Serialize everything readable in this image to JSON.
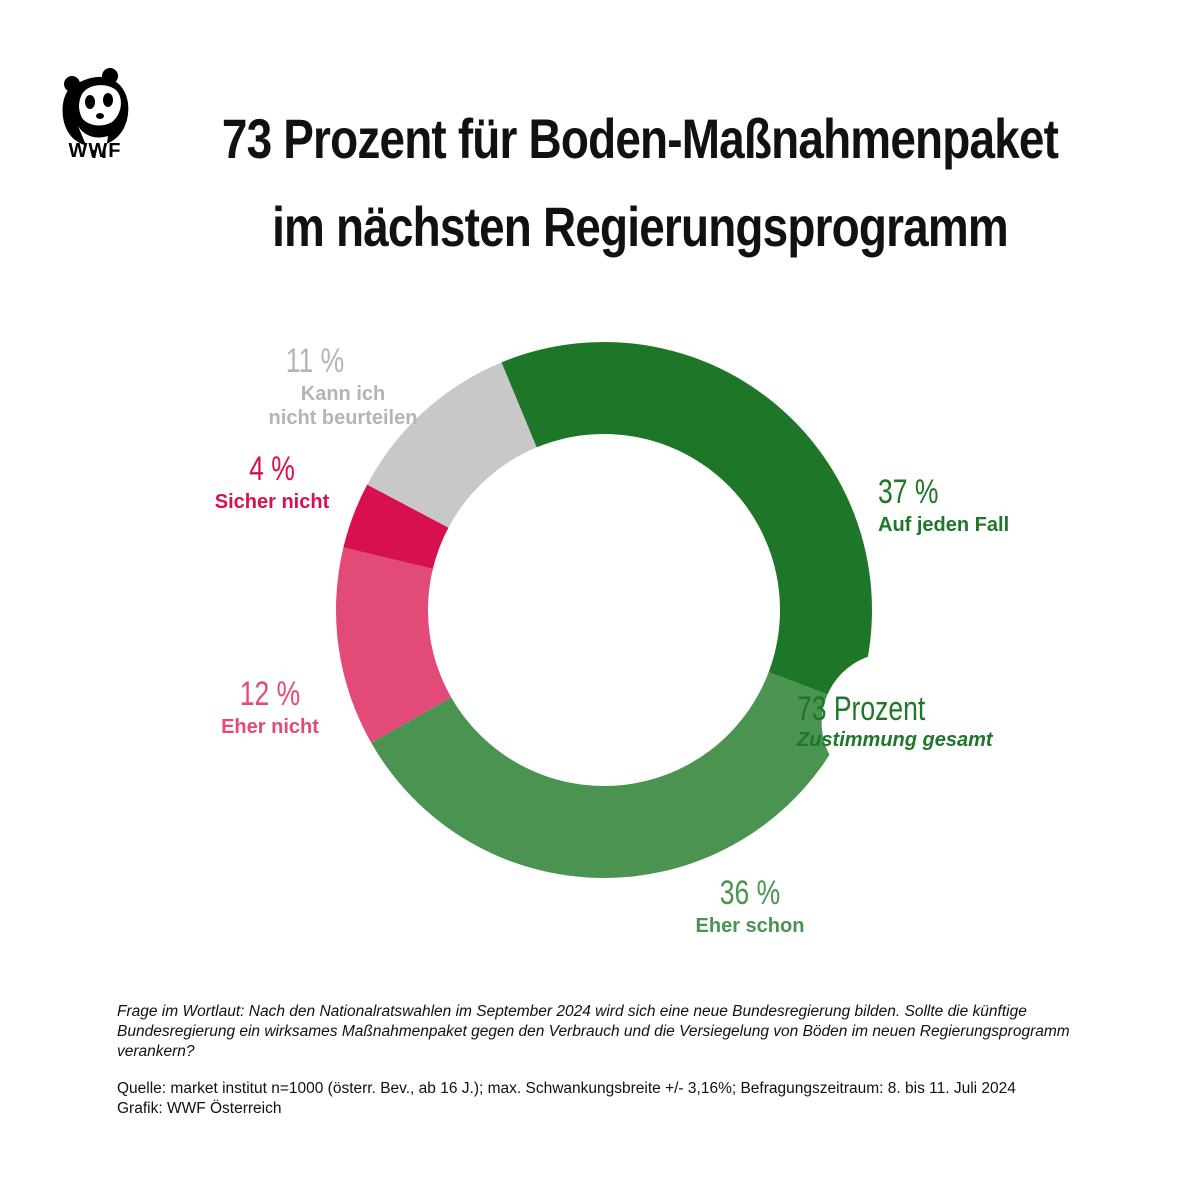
{
  "logo": {
    "text": "WWF"
  },
  "title": {
    "line1": "73 Prozent für Boden-Maßnahmenpaket",
    "line2": "im nächsten Regierungsprogramm"
  },
  "chart_data": {
    "type": "pie",
    "subtype": "donut",
    "slices": [
      {
        "label": "Auf jeden Fall",
        "value": 37,
        "value_label": "37 %",
        "color": "#1e7728"
      },
      {
        "label": "Eher schon",
        "value": 36,
        "value_label": "36 %",
        "color": "#4a9350"
      },
      {
        "label": "Eher nicht",
        "value": 12,
        "value_label": "12 %",
        "color": "#e24b77"
      },
      {
        "label": "Sicher nicht",
        "value": 4,
        "value_label": "4 %",
        "color": "#d81050"
      },
      {
        "label": "Kann ich nicht beurteilen",
        "value": 11,
        "value_label": "11 %",
        "color": "#c8c8c8"
      }
    ],
    "annotation": {
      "value": "73 Prozent",
      "text": "Zustimmung gesamt",
      "color": "#1e7728"
    }
  },
  "footer": {
    "question": "Frage im Wortlaut: Nach den Nationalratswahlen im September 2024 wird sich eine neue Bundesregierung bilden. Sollte die künftige Bundesregierung ein wirksames Maßnahmenpaket gegen den Verbrauch und die Versiegelung von Böden im neuen Regierungsprogramm verankern?",
    "source": "Quelle: market institut n=1000 (österr. Bev., ab 16 J.); max. Schwankungsbreite +/- 3,16%; Befragungszeitraum: 8. bis 11. Juli 2024",
    "credit": "Grafik: WWF Österreich"
  }
}
